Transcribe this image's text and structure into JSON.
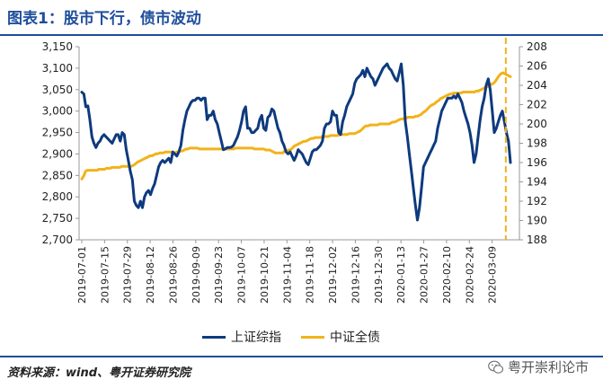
{
  "header": {
    "title": "图表1：股市下行，债市波动"
  },
  "footer": {
    "source": "资料来源：wind、粤开证券研究院",
    "watermark": "粤开崇利论市"
  },
  "colors": {
    "primary": "#0e3a7e",
    "secondary": "#f2b21a",
    "heading": "#1f4e9c",
    "divider": "#f2b21a"
  },
  "chart_data": {
    "type": "line",
    "xlabels": [
      "2019-07-01",
      "2019-07-15",
      "2019-07-29",
      "2019-08-12",
      "2019-08-26",
      "2019-09-09",
      "2019-09-23",
      "2019-10-07",
      "2019-10-21",
      "2019-11-04",
      "2019-11-18",
      "2019-12-02",
      "2019-12-16",
      "2019-12-30",
      "2020-01-13",
      "2020-01-27",
      "2020-02-10",
      "2020-02-24",
      "2020-03-09"
    ],
    "y_left": {
      "ylim": [
        2700,
        3150
      ],
      "ticks": [
        "2,700",
        "2,750",
        "2,800",
        "2,850",
        "2,900",
        "2,950",
        "3,000",
        "3,050",
        "3,100",
        "3,150"
      ]
    },
    "y_right": {
      "ylim": [
        188,
        208
      ],
      "ticks": [
        "188",
        "190",
        "192",
        "194",
        "196",
        "198",
        "200",
        "202",
        "204",
        "206",
        "208"
      ]
    },
    "divider_index": 18.6,
    "series": [
      {
        "name": "上证综指",
        "axis": "left",
        "values": [
          3044,
          3040,
          3010,
          3012,
          2980,
          2940,
          2925,
          2915,
          2925,
          2930,
          2940,
          2945,
          2940,
          2935,
          2930,
          2925,
          2935,
          2945,
          2945,
          2930,
          2950,
          2945,
          2910,
          2885,
          2860,
          2840,
          2790,
          2780,
          2775,
          2790,
          2775,
          2800,
          2810,
          2815,
          2805,
          2820,
          2830,
          2850,
          2870,
          2880,
          2885,
          2880,
          2885,
          2890,
          2880,
          2905,
          2900,
          2895,
          2905,
          2920,
          2955,
          2980,
          3000,
          3010,
          3020,
          3025,
          3025,
          3030,
          3030,
          3025,
          3030,
          3030,
          2980,
          2990,
          2990,
          3000,
          2980,
          2970,
          2950,
          2930,
          2910,
          2912,
          2915,
          2915,
          2916,
          2920,
          2930,
          2940,
          2955,
          2975,
          3000,
          3010,
          2960,
          2960,
          2950,
          2950,
          2955,
          2960,
          2980,
          2990,
          2960,
          2955,
          2985,
          2990,
          3005,
          3000,
          2980,
          2960,
          2950,
          2930,
          2920,
          2905,
          2900,
          2905,
          2895,
          2885,
          2895,
          2910,
          2905,
          2900,
          2890,
          2880,
          2875,
          2890,
          2905,
          2910,
          2910,
          2915,
          2920,
          2930,
          2960,
          2970,
          2970,
          2975,
          3000,
          2990,
          2990,
          2950,
          2945,
          2975,
          2990,
          3010,
          3020,
          3030,
          3040,
          3065,
          3075,
          3080,
          3085,
          3095,
          3080,
          3100,
          3090,
          3080,
          3075,
          3060,
          3070,
          3080,
          3090,
          3100,
          3105,
          3110,
          3100,
          3095,
          3085,
          3075,
          3070,
          3090,
          3110,
          3060,
          2976,
          2940,
          2900,
          2860,
          2820,
          2780,
          2746,
          2775,
          2820,
          2870,
          2880,
          2890,
          2900,
          2910,
          2920,
          2930,
          2960,
          2980,
          3000,
          3010,
          3020,
          3030,
          3030,
          3030,
          3035,
          3030,
          3040,
          3030,
          3020,
          3000,
          2985,
          2970,
          2950,
          2920,
          2880,
          2900,
          2940,
          2980,
          3010,
          3030,
          3060,
          3075,
          3050,
          3000,
          2950,
          2960,
          2975,
          2990,
          3000,
          2975,
          2950,
          2930,
          2880
        ]
      },
      {
        "name": "中证全债",
        "axis": "right",
        "values": [
          194.3,
          194.6,
          195.1,
          195.2,
          195.2,
          195.2,
          195.2,
          195.2,
          195.2,
          195.3,
          195.3,
          195.3,
          195.3,
          195.4,
          195.4,
          195.4,
          195.5,
          195.5,
          195.5,
          195.5,
          195.5,
          195.6,
          195.6,
          195.6,
          195.6,
          195.6,
          195.6,
          195.7,
          195.8,
          196.0,
          196.1,
          196.2,
          196.3,
          196.4,
          196.5,
          196.6,
          196.7,
          196.7,
          196.8,
          196.9,
          196.9,
          197.0,
          197.0,
          197.0,
          197.1,
          197.1,
          197.1,
          197.1,
          197.0,
          197.0,
          197.1,
          197.1,
          197.2,
          197.2,
          197.3,
          197.4,
          197.4,
          197.5,
          197.5,
          197.5,
          197.5,
          197.5,
          197.4,
          197.4,
          197.4,
          197.4,
          197.4,
          197.4,
          197.4,
          197.4,
          197.4,
          197.4,
          197.4,
          197.4,
          197.4,
          197.4,
          197.4,
          197.4,
          197.4,
          197.4,
          197.4,
          197.5,
          197.5,
          197.5,
          197.5,
          197.5,
          197.5,
          197.5,
          197.5,
          197.5,
          197.5,
          197.4,
          197.4,
          197.4,
          197.4,
          197.4,
          197.4,
          197.3,
          197.3,
          197.3,
          197.2,
          197.1,
          197.0,
          197.0,
          197.0,
          197.0,
          197.0,
          197.2,
          197.2,
          197.3,
          197.3,
          197.5,
          197.7,
          197.8,
          197.9,
          198.0,
          198.1,
          198.2,
          198.2,
          198.3,
          198.4,
          198.5,
          198.5,
          198.6,
          198.6,
          198.6,
          198.6,
          198.7,
          198.7,
          198.7,
          198.7,
          198.8,
          198.8,
          198.8,
          198.8,
          198.8,
          198.9,
          198.9,
          198.9,
          198.9,
          198.9,
          199.0,
          199.0,
          199.0,
          199.0,
          199.1,
          199.2,
          199.3,
          199.5,
          199.7,
          199.8,
          199.8,
          199.9,
          199.9,
          199.9,
          199.9,
          199.9,
          200.0,
          200.0,
          200.0,
          200.0,
          200.0,
          200.0,
          200.1,
          200.2,
          200.2,
          200.3,
          200.4,
          200.5,
          200.5,
          200.6,
          200.6,
          200.7,
          200.7,
          200.7,
          200.7,
          200.8,
          200.8,
          200.9,
          201.0,
          201.2,
          201.3,
          201.5,
          201.7,
          201.9,
          202.0,
          202.1,
          202.3,
          202.4,
          202.6,
          202.7,
          202.8,
          202.9,
          203.0,
          203.1,
          203.1,
          203.2,
          203.2,
          203.2,
          203.2,
          203.2,
          203.3,
          203.3,
          203.3,
          203.3,
          203.3,
          203.3,
          203.3,
          203.4,
          203.4,
          203.5,
          203.6,
          203.7,
          203.8,
          203.9,
          204.0,
          204.1,
          204.2,
          204.4,
          204.7,
          205.0,
          205.2,
          205.3,
          205.2,
          205.1,
          205.0,
          204.9
        ]
      }
    ]
  }
}
